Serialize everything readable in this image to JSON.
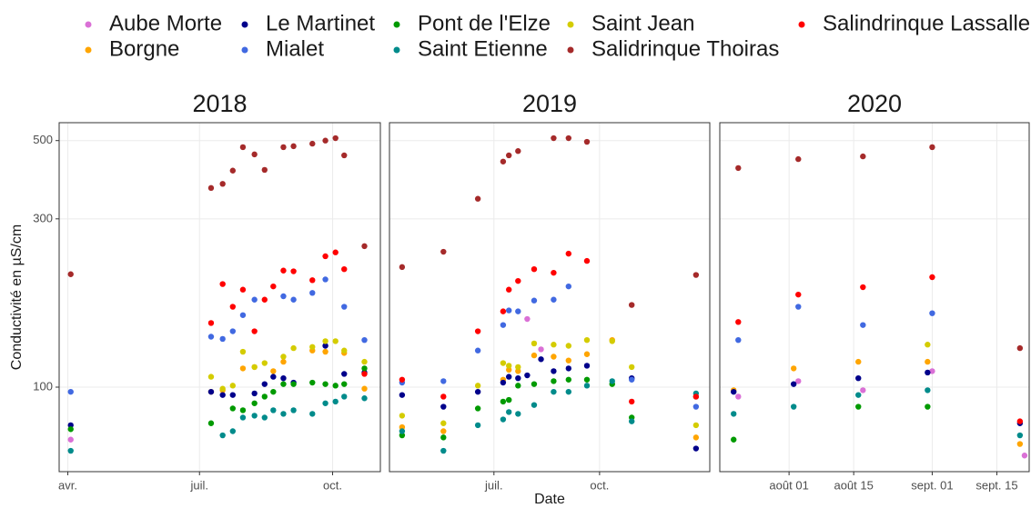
{
  "chart_data": {
    "type": "scatter",
    "ylabel": "Conductivité en µS/cm",
    "xlabel": "Date",
    "log_y": true,
    "grid": true,
    "legend": "top",
    "ylim": [
      57.6,
      562
    ],
    "yticks": [
      100,
      300,
      500
    ],
    "facets": [
      {
        "title": "2018",
        "xlim": [
          "2018-03-26",
          "2018-11-03"
        ],
        "xticks": [
          {
            "value": "2018-04-01",
            "label": "avr."
          },
          {
            "value": "2018-07-01",
            "label": "juil."
          },
          {
            "value": "2018-10-01",
            "label": "oct."
          }
        ],
        "x": [
          "2018-04-03",
          "2018-07-09",
          "2018-07-17",
          "2018-07-24",
          "2018-07-31",
          "2018-08-08",
          "2018-08-15",
          "2018-08-21",
          "2018-08-28",
          "2018-09-04",
          "2018-09-17",
          "2018-09-26",
          "2018-10-03",
          "2018-10-09",
          "2018-10-23"
        ]
      },
      {
        "title": "2019",
        "xlim": [
          "2019-04-01",
          "2020-01-05"
        ],
        "xticks": [
          {
            "value": "2019-07-01",
            "label": "juil."
          },
          {
            "value": "2019-10-01",
            "label": "oct."
          }
        ],
        "x": [
          "2019-04-12",
          "2019-05-18",
          "2019-06-17",
          "2019-07-09",
          "2019-07-14",
          "2019-07-22",
          "2019-07-30",
          "2019-08-05",
          "2019-08-11",
          "2019-08-22",
          "2019-09-04",
          "2019-09-20",
          "2019-10-12",
          "2019-10-29",
          "2019-12-24"
        ]
      },
      {
        "title": "2020",
        "xlim": [
          "2020-07-17",
          "2020-09-22"
        ],
        "xticks": [
          {
            "value": "2020-08-01",
            "label": "août 01"
          },
          {
            "value": "2020-08-15",
            "label": "août 15"
          },
          {
            "value": "2020-09-01",
            "label": "sept. 01"
          },
          {
            "value": "2020-09-15",
            "label": "sept. 15"
          }
        ],
        "x": [
          "2020-07-20",
          "2020-07-21",
          "2020-08-02",
          "2020-08-03",
          "2020-08-16",
          "2020-08-17",
          "2020-08-31",
          "2020-09-01",
          "2020-09-20",
          "2020-09-21"
        ]
      }
    ],
    "series": [
      {
        "name": "Aube Morte",
        "color": "#da70d6",
        "values": [
          [
            71,
            null,
            null,
            null,
            null,
            null,
            null,
            null,
            null,
            null,
            null,
            null,
            null,
            null,
            null
          ],
          [
            null,
            null,
            null,
            null,
            null,
            null,
            156,
            null,
            128,
            null,
            null,
            null,
            null,
            null,
            null
          ],
          [
            null,
            94,
            null,
            104,
            null,
            98,
            null,
            111,
            null,
            64
          ]
        ]
      },
      {
        "name": "Borgne",
        "color": "#ffa500",
        "values": [
          [
            null,
            97,
            98,
            null,
            113,
            114,
            null,
            111,
            118,
            null,
            127,
            126,
            null,
            125,
            99
          ],
          [
            77,
            75,
            null,
            105,
            112,
            111,
            null,
            123,
            null,
            122,
            119,
            124,
            136,
            null,
            72
          ],
          [
            98,
            null,
            113,
            null,
            118,
            null,
            118,
            null,
            69,
            null
          ]
        ]
      },
      {
        "name": "Le Martinet",
        "color": "#00008b",
        "values": [
          [
            78,
            97,
            95,
            95,
            null,
            96,
            102,
            107,
            106,
            103,
            null,
            131,
            null,
            109,
            110
          ],
          [
            95,
            88,
            97,
            103,
            107,
            106,
            108,
            null,
            120,
            111,
            113,
            115,
            null,
            106,
            67
          ],
          [
            97,
            null,
            102,
            null,
            106,
            null,
            110,
            null,
            79,
            null
          ]
        ]
      },
      {
        "name": "Mialet",
        "color": "#4169e1",
        "values": [
          [
            97,
            139,
            137,
            144,
            160,
            177,
            null,
            null,
            181,
            177,
            185,
            202,
            null,
            169,
            136
          ],
          [
            103,
            104,
            127,
            150,
            165,
            164,
            null,
            176,
            null,
            177,
            193,
            null,
            null,
            105,
            88
          ],
          [
            null,
            136,
            null,
            169,
            null,
            150,
            null,
            162,
            null,
            null
          ]
        ]
      },
      {
        "name": "Pont de l'Elze",
        "color": "#009a00",
        "values": [
          [
            76,
            79,
            null,
            87,
            86,
            90,
            94,
            97,
            102,
            102,
            103,
            102,
            101,
            102,
            113
          ],
          [
            73,
            72,
            87,
            91,
            92,
            101,
            null,
            102,
            null,
            104,
            105,
            105,
            102,
            82,
            94
          ],
          [
            71,
            null,
            null,
            null,
            88,
            null,
            88,
            null,
            null,
            null
          ]
        ]
      },
      {
        "name": "Saint Etienne",
        "color": "#008b8b",
        "values": [
          [
            66,
            null,
            73,
            75,
            82,
            83,
            82,
            86,
            84,
            86,
            84,
            90,
            91,
            94,
            93
          ],
          [
            75,
            66,
            78,
            81,
            85,
            84,
            null,
            89,
            null,
            97,
            97,
            101,
            104,
            80,
            96
          ],
          [
            84,
            null,
            88,
            null,
            95,
            null,
            98,
            null,
            73,
            null
          ]
        ]
      },
      {
        "name": "Saint Jean",
        "color": "#d4cc00",
        "values": [
          [
            null,
            107,
            99,
            101,
            126,
            114,
            117,
            null,
            122,
            129,
            130,
            135,
            135,
            127,
            118
          ],
          [
            83,
            79,
            101,
            117,
            115,
            114,
            null,
            133,
            null,
            132,
            131,
            136,
            135,
            114,
            78
          ],
          [
            null,
            null,
            null,
            null,
            null,
            null,
            132,
            null,
            null,
            null
          ]
        ]
      },
      {
        "name": "Salidrinque Thoiras",
        "color": "#a52a2a",
        "values": [
          [
            209,
            367,
            377,
            411,
            479,
            457,
            413,
            null,
            479,
            482,
            490,
            500,
            508,
            454,
            251
          ],
          [
            219,
            242,
            342,
            436,
            454,
            467,
            null,
            null,
            null,
            508,
            508,
            496,
            null,
            171,
            208
          ],
          [
            null,
            418,
            null,
            443,
            null,
            451,
            null,
            479,
            129,
            null
          ]
        ]
      },
      {
        "name": "Salindrinque Lassalle",
        "color": "#ff0000",
        "values": [
          [
            null,
            152,
            196,
            169,
            189,
            144,
            177,
            193,
            214,
            213,
            201,
            235,
            241,
            216,
            109
          ],
          [
            105,
            94,
            144,
            164,
            189,
            200,
            null,
            216,
            null,
            211,
            239,
            228,
            null,
            91,
            94
          ],
          [
            null,
            153,
            null,
            183,
            null,
            192,
            null,
            205,
            80,
            null
          ]
        ]
      }
    ]
  }
}
